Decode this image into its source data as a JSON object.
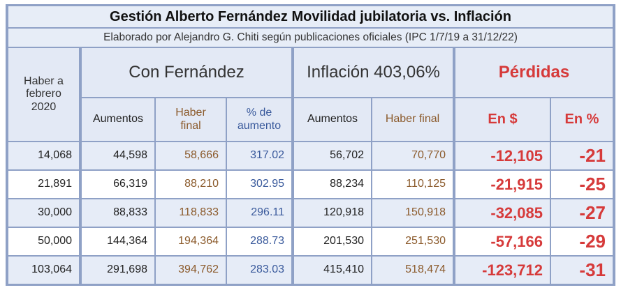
{
  "title": "Gestión Alberto Fernández Movilidad jubilatoria vs. Inflación",
  "subtitle": "Elaborado por Alejandro G. Chiti según publicaciones oficiales (IPC 1/7/19 a 31/12/22)",
  "headers": {
    "haber_feb": "Haber a febrero 2020",
    "con_fernandez": "Con Fernández",
    "inflacion": "Inflación 403,06%",
    "perdidas": "Pérdidas",
    "aumentos": "Aumentos",
    "haber_final": "Haber final",
    "pct_aumento": "% de aumento",
    "aumentos2": "Aumentos",
    "haber_final2": "Haber final",
    "en_pesos": "En $",
    "en_pct": "En %"
  },
  "colors": {
    "loss": "#d63a3a",
    "brown": "#8b5a2b",
    "blue": "#3a5a9c",
    "band": "#e6ecf7",
    "border": "#8fa1c6"
  },
  "rows": [
    {
      "haber": "14,068",
      "aumentos": "44,598",
      "haber_final": "58,666",
      "pct": "317.02",
      "inf_aumentos": "56,702",
      "inf_haber_final": "70,770",
      "perdida_pesos": "-12,105",
      "perdida_pct": "-21"
    },
    {
      "haber": "21,891",
      "aumentos": "66,319",
      "haber_final": "88,210",
      "pct": "302.95",
      "inf_aumentos": "88,234",
      "inf_haber_final": "110,125",
      "perdida_pesos": "-21,915",
      "perdida_pct": "-25"
    },
    {
      "haber": "30,000",
      "aumentos": "88,833",
      "haber_final": "118,833",
      "pct": "296.11",
      "inf_aumentos": "120,918",
      "inf_haber_final": "150,918",
      "perdida_pesos": "-32,085",
      "perdida_pct": "-27"
    },
    {
      "haber": "50,000",
      "aumentos": "144,364",
      "haber_final": "194,364",
      "pct": "288.73",
      "inf_aumentos": "201,530",
      "inf_haber_final": "251,530",
      "perdida_pesos": "-57,166",
      "perdida_pct": "-29"
    },
    {
      "haber": "103,064",
      "aumentos": "291,698",
      "haber_final": "394,762",
      "pct": "283.03",
      "inf_aumentos": "415,410",
      "inf_haber_final": "518,474",
      "perdida_pesos": "-123,712",
      "perdida_pct": "-31"
    }
  ]
}
